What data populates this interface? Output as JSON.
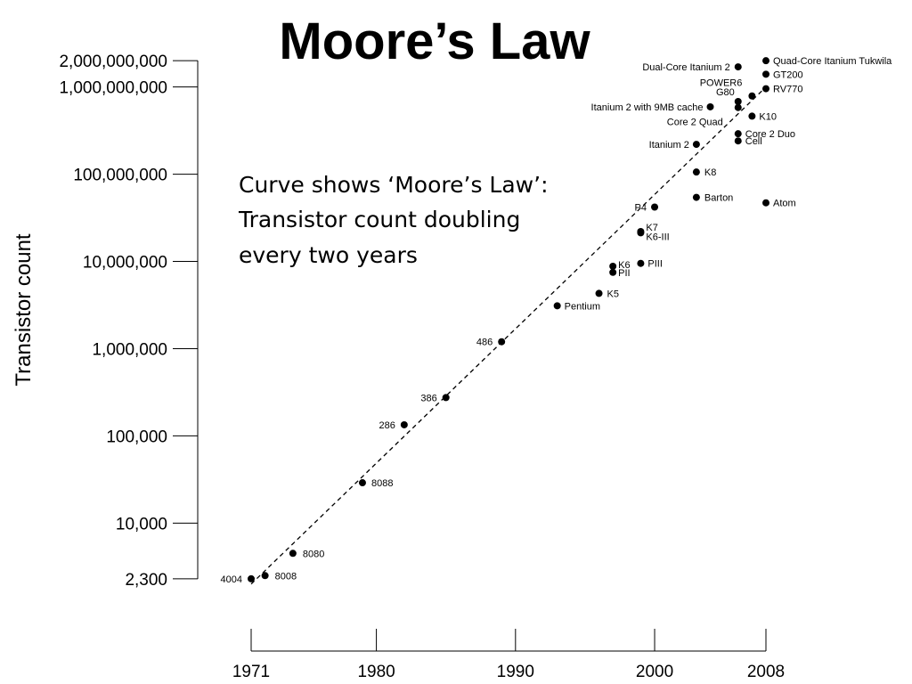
{
  "chart_data": {
    "type": "scatter",
    "title": "Moore’s Law",
    "xlabel": "",
    "ylabel": "Transistor count",
    "y_scale": "log",
    "xlim": [
      1971,
      2008
    ],
    "ylim": [
      2300,
      2000000000
    ],
    "x_ticks": [
      1971,
      1980,
      1990,
      2000,
      2008
    ],
    "x_tick_labels": [
      "1971",
      "1980",
      "1990",
      "2000",
      "2008"
    ],
    "y_ticks": [
      2300,
      10000,
      100000,
      1000000,
      10000000,
      100000000,
      1000000000,
      2000000000
    ],
    "y_tick_labels": [
      "2,300",
      "10,000",
      "100,000",
      "1,000,000",
      "10,000,000",
      "100,000,000",
      "1,000,000,000",
      "2,000,000,000"
    ],
    "trend": {
      "label": "Curve shows ‘Moore’s Law’: Transistor count doubling every two years",
      "x": [
        1971,
        2008
      ],
      "y": [
        2000,
        1000000000
      ]
    },
    "annotation_lines": [
      "Curve shows ‘Moore’s Law’:",
      "Transistor count doubling",
      "every two years"
    ],
    "grid": false,
    "legend": "none",
    "series": [
      {
        "points": [
          {
            "label": "4004",
            "x": 1971,
            "y": 2300
          },
          {
            "label": "8008",
            "x": 1972,
            "y": 2500
          },
          {
            "label": "8080",
            "x": 1974,
            "y": 4500
          },
          {
            "label": "8088",
            "x": 1979,
            "y": 29000
          },
          {
            "label": "286",
            "x": 1982,
            "y": 134000
          },
          {
            "label": "386",
            "x": 1985,
            "y": 275000
          },
          {
            "label": "486",
            "x": 1989,
            "y": 1200000
          },
          {
            "label": "Pentium",
            "x": 1993,
            "y": 3100000
          },
          {
            "label": "K5",
            "x": 1996,
            "y": 4300000
          },
          {
            "label": "K6",
            "x": 1997,
            "y": 8800000
          },
          {
            "label": "PII",
            "x": 1997,
            "y": 7500000
          },
          {
            "label": "PIII",
            "x": 1999,
            "y": 9500000
          },
          {
            "label": "K7",
            "x": 1999,
            "y": 22000000
          },
          {
            "label": "K6-III",
            "x": 1999,
            "y": 21300000
          },
          {
            "label": "P4",
            "x": 2000,
            "y": 42000000
          },
          {
            "label": "Barton",
            "x": 2003,
            "y": 54300000
          },
          {
            "label": "K8",
            "x": 2003,
            "y": 105900000
          },
          {
            "label": "Itanium 2",
            "x": 2003,
            "y": 220000000
          },
          {
            "label": "Itanium 2 with 9MB cache",
            "x": 2004,
            "y": 592000000
          },
          {
            "label": "Core 2 Duo",
            "x": 2006,
            "y": 291000000
          },
          {
            "label": "Cell",
            "x": 2006,
            "y": 241000000
          },
          {
            "label": "Core 2 Quad",
            "x": 2006,
            "y": 582000000
          },
          {
            "label": "G80",
            "x": 2006,
            "y": 681000000
          },
          {
            "label": "Dual-Core Itanium 2",
            "x": 2006,
            "y": 1700000000
          },
          {
            "label": "POWER6",
            "x": 2007,
            "y": 789000000
          },
          {
            "label": "K10",
            "x": 2007,
            "y": 463000000
          },
          {
            "label": "Quad-Core Itanium Tukwila",
            "x": 2008,
            "y": 2000000000
          },
          {
            "label": "GT200",
            "x": 2008,
            "y": 1400000000
          },
          {
            "label": "RV770",
            "x": 2008,
            "y": 956000000
          },
          {
            "label": "Atom",
            "x": 2008,
            "y": 47000000
          }
        ]
      }
    ]
  }
}
